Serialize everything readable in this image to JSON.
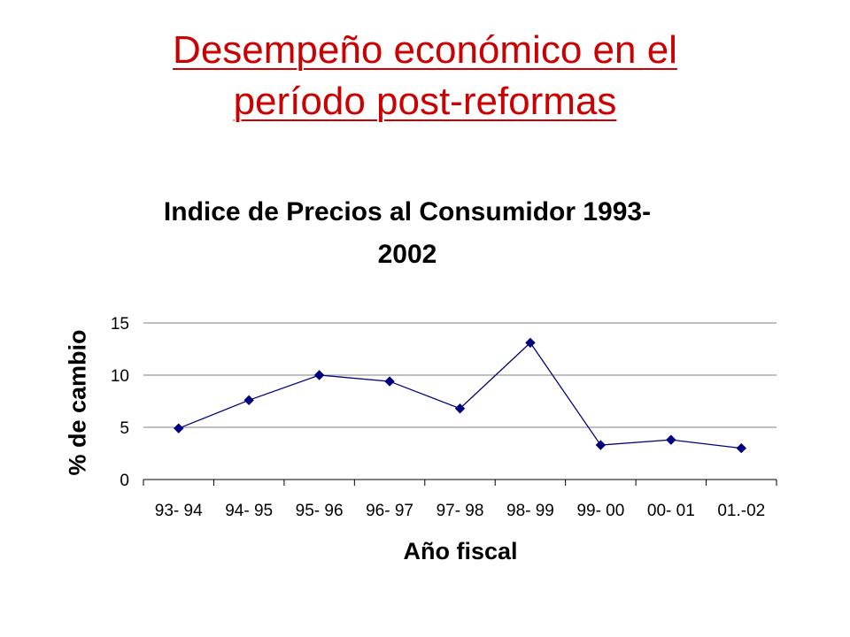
{
  "slide": {
    "title_line1": "Desempeño económico en el",
    "title_line2": "período post-reformas",
    "title_color": "#cc0000"
  },
  "chart_data": {
    "type": "line",
    "title_line1": "Indice de Precios al Consumidor 1993-",
    "title_line2": "2002",
    "xlabel": "Año fiscal",
    "ylabel": "% de cambio",
    "categories": [
      "93- 94",
      "94- 95",
      "95- 96",
      "96- 97",
      "97- 98",
      "98- 99",
      "99- 00",
      "00- 01",
      "01.-02"
    ],
    "series": [
      {
        "values": [
          4.9,
          7.6,
          10.0,
          9.4,
          6.8,
          13.1,
          3.3,
          3.8,
          3.0
        ],
        "color": "#000080"
      }
    ],
    "ylim": [
      0,
      15
    ],
    "yticks": [
      0,
      5,
      10,
      15
    ],
    "grid": true,
    "legend": "none",
    "marker": "diamond"
  }
}
